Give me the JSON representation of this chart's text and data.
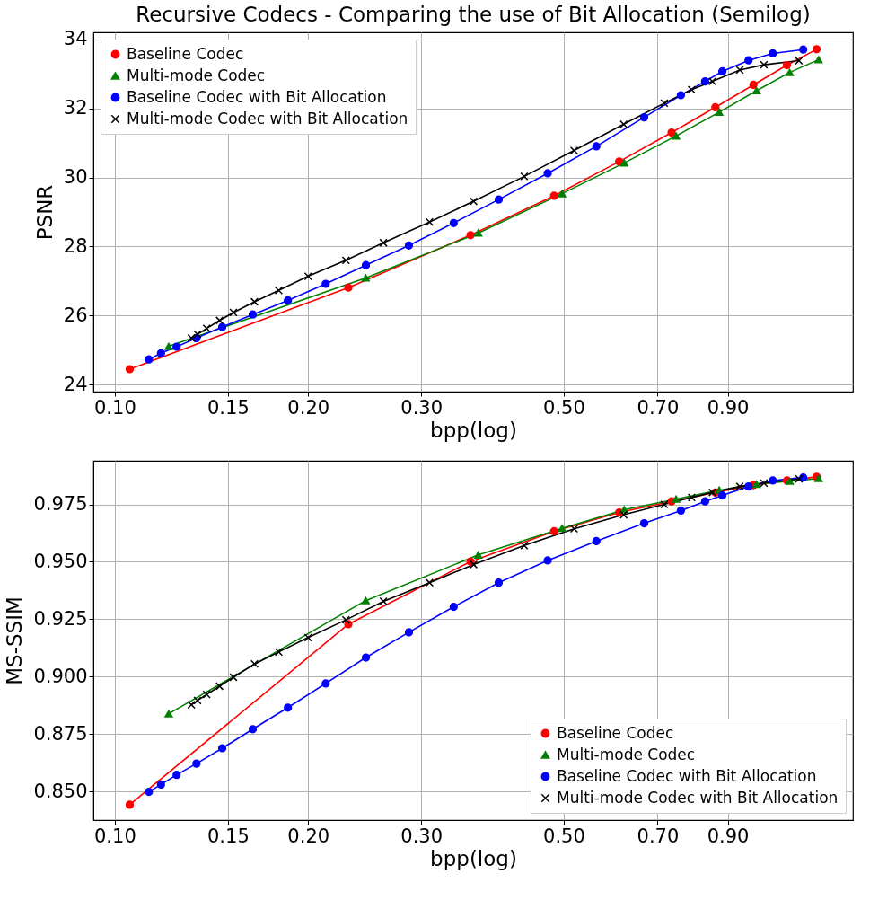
{
  "chart_data": [
    {
      "type": "line",
      "title": "Recursive Codecs - Comparing the use of Bit Allocation (Semilog)",
      "xlabel": "bpp(log)",
      "ylabel": "PSNR",
      "log": "x",
      "grid": true,
      "legend": "top left",
      "xlim": [
        0.0926,
        1.41
      ],
      "ylim": [
        23.8,
        34.2
      ],
      "xticks": [
        {
          "value": 0.1,
          "label": "0.10"
        },
        0.15,
        {
          "value": 0.2,
          "label": "0.20"
        },
        {
          "value": 0.3,
          "label": "0.30"
        },
        {
          "value": 0.5,
          "label": "0.50"
        },
        {
          "value": 0.7,
          "label": "0.70"
        },
        {
          "value": 0.9,
          "label": "0.90"
        }
      ],
      "yticks": [
        24,
        26,
        28,
        30,
        32,
        34
      ],
      "series": [
        {
          "name": "Baseline Codec",
          "color": "#ff0000",
          "marker": "circle",
          "x": [
            0.1055,
            0.231,
            0.358,
            0.483,
            0.61,
            0.736,
            0.861,
            0.987,
            1.113,
            1.238
          ],
          "values": [
            24.45,
            26.81,
            28.33,
            29.47,
            30.46,
            31.3,
            32.03,
            32.68,
            33.25,
            33.71
          ]
        },
        {
          "name": "Multi-mode Codec",
          "color": "#008000",
          "marker": "triangle",
          "x": [
            0.1213,
            0.2458,
            0.368,
            0.497,
            0.621,
            0.748,
            0.873,
            0.998,
            1.124,
            1.247
          ],
          "values": [
            25.11,
            27.09,
            28.39,
            29.53,
            30.42,
            31.2,
            31.89,
            32.51,
            33.04,
            33.41
          ]
        },
        {
          "name": "Baseline Codec with Bit Allocation",
          "color": "#0000ff",
          "marker": "circle",
          "x": [
            0.113,
            0.118,
            0.1248,
            0.134,
            0.147,
            0.164,
            0.186,
            0.213,
            0.246,
            0.287,
            0.337,
            0.396,
            0.472,
            0.562,
            0.667,
            0.761,
            0.83,
            0.883,
            0.97,
            1.058,
            1.18
          ],
          "values": [
            24.73,
            24.91,
            25.1,
            25.35,
            25.67,
            26.03,
            26.44,
            26.92,
            27.46,
            28.03,
            28.68,
            29.36,
            30.12,
            30.9,
            31.74,
            32.38,
            32.78,
            33.07,
            33.39,
            33.59,
            33.7
          ]
        },
        {
          "name": "Multi-mode Codec with Bit Allocation",
          "color": "#000000",
          "marker": "cross",
          "x": [
            0.1316,
            0.1345,
            0.139,
            0.1456,
            0.153,
            0.165,
            0.18,
            0.2,
            0.229,
            0.262,
            0.309,
            0.362,
            0.434,
            0.519,
            0.62,
            0.717,
            0.791,
            0.852,
            0.94,
            1.025,
            1.162
          ],
          "values": [
            25.35,
            25.46,
            25.63,
            25.86,
            26.09,
            26.4,
            26.73,
            27.14,
            27.6,
            28.11,
            28.71,
            29.31,
            30.03,
            30.78,
            31.54,
            32.15,
            32.54,
            32.78,
            33.11,
            33.26,
            33.38
          ]
        }
      ]
    },
    {
      "type": "line",
      "xlabel": "bpp(log)",
      "ylabel": "MS-SSIM",
      "log": "x",
      "grid": true,
      "legend": "bottom right",
      "xlim": [
        0.0926,
        1.41
      ],
      "ylim": [
        0.8375,
        0.994
      ],
      "xticks": [
        {
          "value": 0.1,
          "label": "0.10"
        },
        0.15,
        {
          "value": 0.2,
          "label": "0.20"
        },
        {
          "value": 0.3,
          "label": "0.30"
        },
        {
          "value": 0.5,
          "label": "0.50"
        },
        {
          "value": 0.7,
          "label": "0.70"
        },
        {
          "value": 0.9,
          "label": "0.90"
        }
      ],
      "yticks": [
        {
          "value": 0.85,
          "label": "0.850"
        },
        0.875,
        {
          "value": 0.9,
          "label": "0.900"
        },
        0.925,
        {
          "value": 0.95,
          "label": "0.950"
        },
        0.975
      ],
      "series": [
        {
          "name": "Baseline Codec",
          "color": "#ff0000",
          "marker": "circle",
          "x": [
            0.1055,
            0.231,
            0.358,
            0.483,
            0.61,
            0.736,
            0.861,
            0.987,
            1.113,
            1.238
          ],
          "values": [
            0.8442,
            0.9228,
            0.9501,
            0.9633,
            0.9715,
            0.9763,
            0.9802,
            0.9834,
            0.9854,
            0.987
          ]
        },
        {
          "name": "Multi-mode Codec",
          "color": "#008000",
          "marker": "triangle",
          "x": [
            0.1213,
            0.2458,
            0.368,
            0.497,
            0.621,
            0.748,
            0.873,
            0.998,
            1.124,
            1.247
          ],
          "values": [
            0.8838,
            0.9331,
            0.953,
            0.9646,
            0.9727,
            0.9773,
            0.9812,
            0.9838,
            0.9851,
            0.9863
          ]
        },
        {
          "name": "Baseline Codec with Bit Allocation",
          "color": "#0000ff",
          "marker": "circle",
          "x": [
            0.113,
            0.118,
            0.1248,
            0.134,
            0.147,
            0.164,
            0.186,
            0.213,
            0.246,
            0.287,
            0.337,
            0.396,
            0.472,
            0.562,
            0.667,
            0.761,
            0.83,
            0.883,
            0.97,
            1.058,
            1.18
          ],
          "values": [
            0.8498,
            0.853,
            0.8572,
            0.8621,
            0.8688,
            0.8771,
            0.8865,
            0.897,
            0.9083,
            0.9193,
            0.9304,
            0.9409,
            0.9506,
            0.959,
            0.9668,
            0.9723,
            0.9763,
            0.9789,
            0.9828,
            0.9854,
            0.9867
          ]
        },
        {
          "name": "Multi-mode Codec with Bit Allocation",
          "color": "#000000",
          "marker": "cross",
          "x": [
            0.1316,
            0.1345,
            0.139,
            0.1456,
            0.153,
            0.165,
            0.18,
            0.2,
            0.229,
            0.262,
            0.309,
            0.362,
            0.434,
            0.519,
            0.62,
            0.717,
            0.791,
            0.852,
            0.94,
            1.025,
            1.162
          ],
          "values": [
            0.8877,
            0.8896,
            0.8922,
            0.8958,
            0.8997,
            0.9055,
            0.9107,
            0.917,
            0.9247,
            0.9328,
            0.9409,
            0.9488,
            0.9571,
            0.9644,
            0.9705,
            0.975,
            0.978,
            0.9802,
            0.9828,
            0.9843,
            0.9861
          ]
        }
      ]
    }
  ]
}
